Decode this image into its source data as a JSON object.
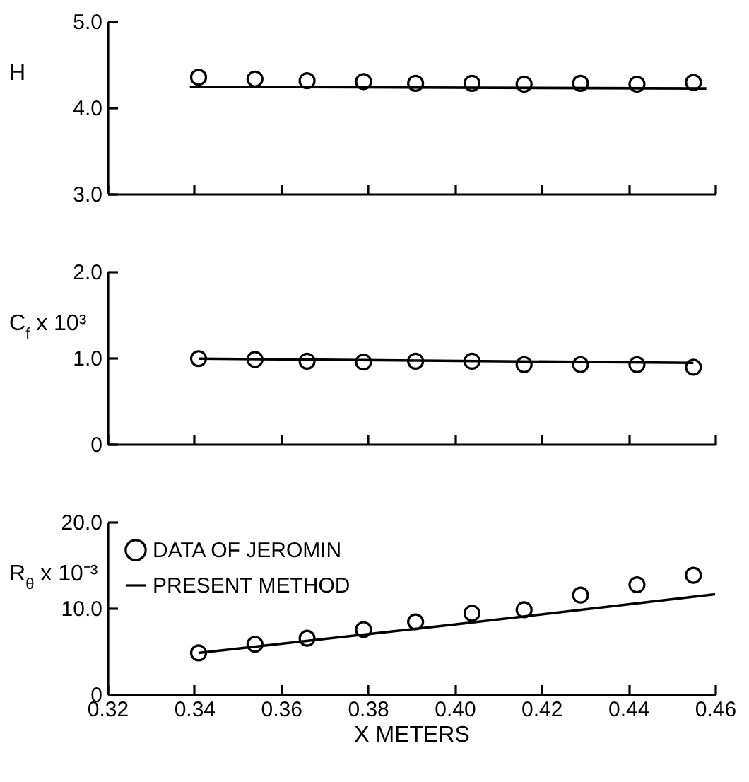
{
  "chart_data": [
    {
      "type": "scatter",
      "ylabel": "H",
      "xlim": [
        0.32,
        0.46
      ],
      "xticks": [
        0.32,
        0.34,
        0.36,
        0.38,
        0.4,
        0.42,
        0.44,
        0.46
      ],
      "ylim": [
        3.0,
        5.0
      ],
      "yticks": [
        {
          "value": 3,
          "label": "3.0"
        },
        {
          "value": 4,
          "label": "4.0"
        },
        {
          "value": 5,
          "label": "5.0"
        }
      ],
      "tick_labels": "y",
      "marker": "circle",
      "series": [
        {
          "color": "#000000",
          "x": [
            0.341,
            0.354,
            0.366,
            0.379,
            0.391,
            0.404,
            0.416,
            0.429,
            0.442,
            0.455
          ],
          "values": [
            4.35,
            4.33,
            4.31,
            4.3,
            4.28,
            4.28,
            4.27,
            4.28,
            4.27,
            4.29
          ]
        },
        {
          "type": "line",
          "marker": "none",
          "color": "#000000",
          "x": [
            0.339,
            0.458
          ],
          "values": [
            4.24,
            4.22
          ]
        }
      ]
    },
    {
      "type": "scatter",
      "ylabel": "C$_{f}$ x 10³",
      "xlim": [
        0.32,
        0.46
      ],
      "xticks": [
        0.32,
        0.34,
        0.36,
        0.38,
        0.4,
        0.42,
        0.44,
        0.46
      ],
      "ylim": [
        0,
        2.0
      ],
      "yticks": [
        0,
        {
          "value": 1,
          "label": "1.0"
        },
        {
          "value": 2,
          "label": "2.0"
        }
      ],
      "tick_labels": "y",
      "marker": "circle",
      "series": [
        {
          "color": "#000000",
          "x": [
            0.341,
            0.354,
            0.366,
            0.379,
            0.391,
            0.404,
            0.416,
            0.429,
            0.442,
            0.455
          ],
          "values": [
            0.99,
            0.98,
            0.96,
            0.95,
            0.96,
            0.96,
            0.92,
            0.92,
            0.92,
            0.89
          ]
        },
        {
          "type": "line",
          "marker": "none",
          "color": "#000000",
          "x": [
            0.341,
            0.455
          ],
          "values": [
            0.99,
            0.94
          ]
        }
      ]
    },
    {
      "type": "scatter",
      "ylabel": "R$_{θ}$ x 10⁻³",
      "xlabel": "X METERS",
      "xlim": [
        0.32,
        0.46
      ],
      "xticks": [
        0.32,
        0.34,
        0.36,
        0.38,
        {
          "value": 0.4,
          "label": "0.40"
        },
        0.42,
        0.44,
        0.46
      ],
      "ylim": [
        0,
        20.0
      ],
      "yticks": [
        0,
        {
          "value": 10,
          "label": "10.0"
        },
        {
          "value": 20,
          "label": "20.0"
        }
      ],
      "legend": "top left",
      "marker": "circle",
      "series": [
        {
          "name": "DATA OF JEROMIN",
          "color": "#000000",
          "x": [
            0.341,
            0.354,
            0.366,
            0.379,
            0.391,
            0.404,
            0.416,
            0.429,
            0.442,
            0.455
          ],
          "values": [
            4.8,
            5.8,
            6.5,
            7.5,
            8.4,
            9.4,
            9.8,
            11.5,
            12.7,
            13.8
          ]
        },
        {
          "type": "line",
          "marker": "none",
          "name": "PRESENT METHOD",
          "color": "#000000",
          "x": [
            0.341,
            0.4,
            0.46
          ],
          "values": [
            4.8,
            8.1,
            11.6
          ]
        }
      ]
    }
  ]
}
